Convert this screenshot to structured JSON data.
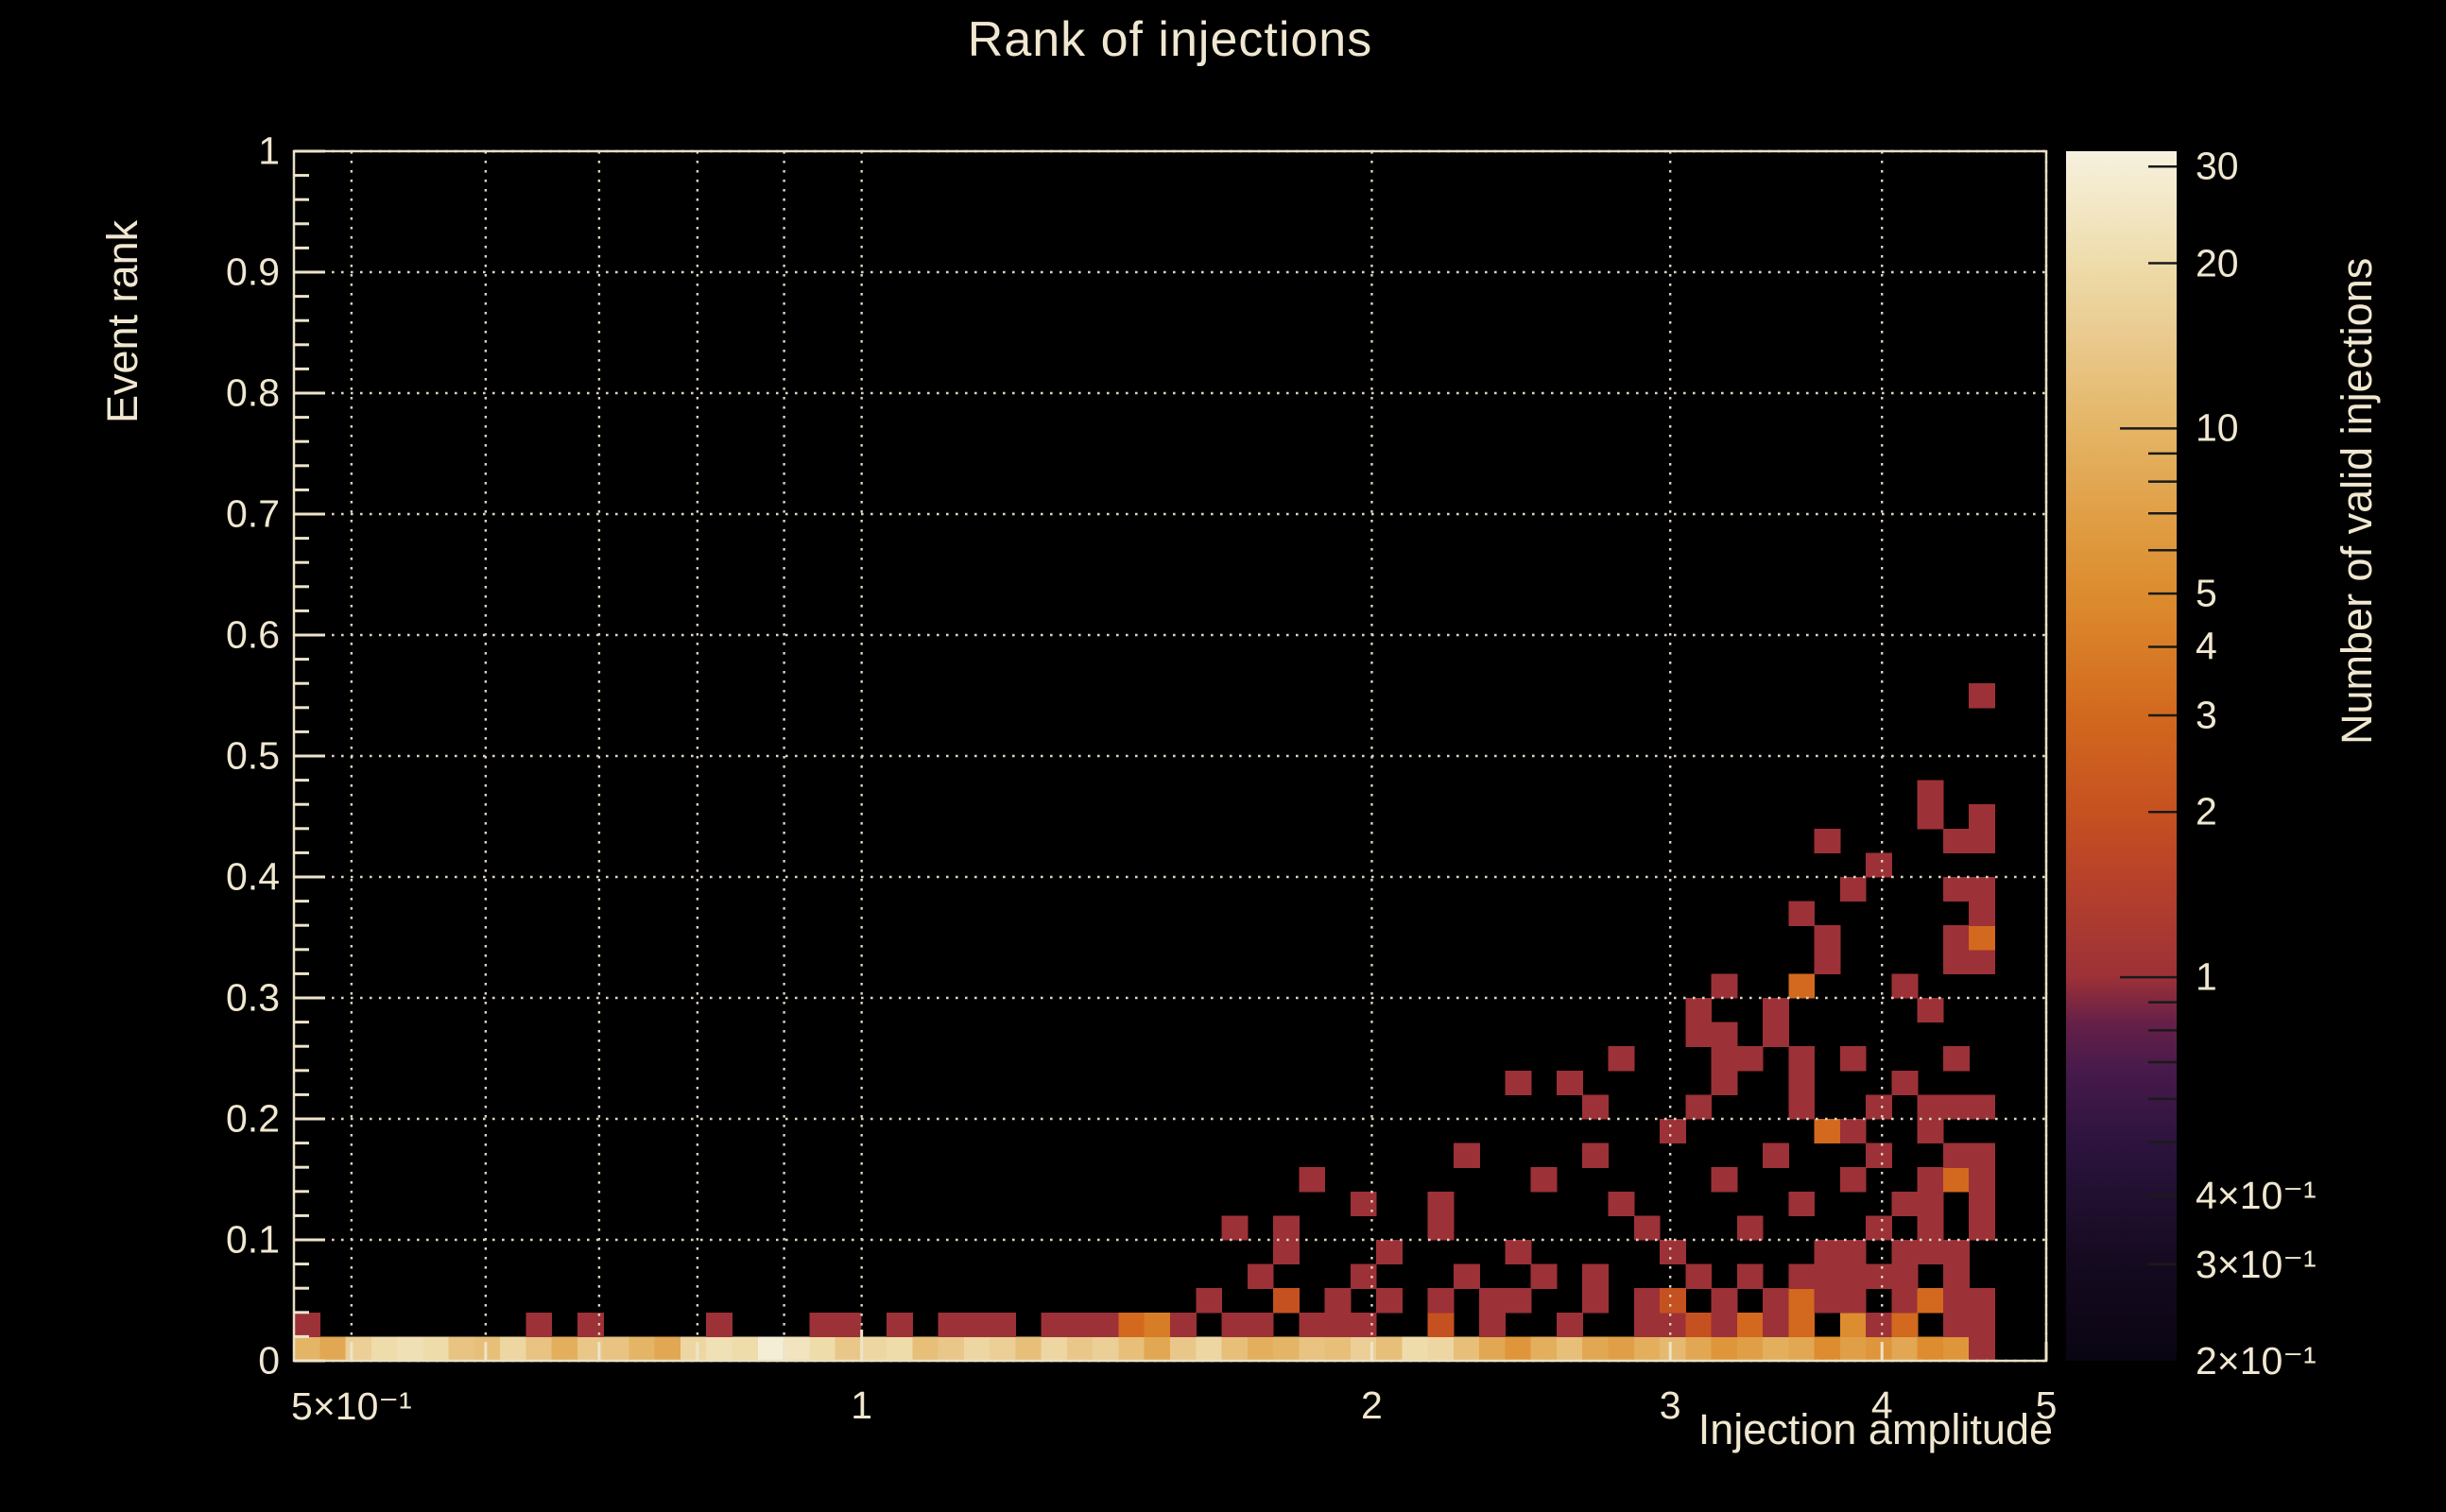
{
  "chart": {
    "title": "Rank of injections",
    "x_title": "Injection amplitude",
    "y_title": "Event rank",
    "z_title": "Number of valid injections",
    "colors": {
      "background": "#000000",
      "text": "#f0e7d0",
      "frame": "#e9dfc6",
      "grid": "#ddd4be",
      "tick": "#eee4ca"
    },
    "x_axis": {
      "scale": "log",
      "min": 0.4624,
      "max": 5,
      "tick_labels": [
        {
          "v": 0.5,
          "label": "5×10⁻¹"
        },
        {
          "v": 1,
          "label": "1"
        },
        {
          "v": 2,
          "label": "2"
        },
        {
          "v": 3,
          "label": "3"
        },
        {
          "v": 4,
          "label": "4"
        },
        {
          "v": 5,
          "label": "5"
        }
      ],
      "grid_values": [
        0.5,
        0.6,
        0.7,
        0.8,
        0.9,
        1,
        2,
        3,
        4,
        5
      ],
      "major_tick_values": [
        1
      ],
      "minor_tick_values": [
        0.5,
        0.6,
        0.7,
        0.8,
        0.9,
        2,
        3,
        4,
        5
      ]
    },
    "y_axis": {
      "scale": "linear",
      "min": 0,
      "max": 1,
      "major_step": 0.1,
      "minor_step": 0.02,
      "grid_values": [
        0,
        0.1,
        0.2,
        0.3,
        0.4,
        0.5,
        0.6,
        0.7,
        0.8,
        0.9,
        1
      ],
      "tick_labels": [
        {
          "v": 0,
          "label": "0"
        },
        {
          "v": 0.1,
          "label": "0.1"
        },
        {
          "v": 0.2,
          "label": "0.2"
        },
        {
          "v": 0.3,
          "label": "0.3"
        },
        {
          "v": 0.4,
          "label": "0.4"
        },
        {
          "v": 0.5,
          "label": "0.5"
        },
        {
          "v": 0.6,
          "label": "0.6"
        },
        {
          "v": 0.7,
          "label": "0.7"
        },
        {
          "v": 0.8,
          "label": "0.8"
        },
        {
          "v": 0.9,
          "label": "0.9"
        },
        {
          "v": 1,
          "label": "1"
        }
      ]
    },
    "z_axis": {
      "scale": "log",
      "min": 0.2,
      "max": 32,
      "tick_labels": [
        {
          "v": 30,
          "label": "30"
        },
        {
          "v": 20,
          "label": "20"
        },
        {
          "v": 10,
          "label": "10"
        },
        {
          "v": 5,
          "label": "5"
        },
        {
          "v": 4,
          "label": "4"
        },
        {
          "v": 3,
          "label": "3"
        },
        {
          "v": 2,
          "label": "2"
        },
        {
          "v": 1,
          "label": "1"
        },
        {
          "v": 0.4,
          "label": "4×10⁻¹"
        },
        {
          "v": 0.3,
          "label": "3×10⁻¹"
        },
        {
          "v": 0.2,
          "label": "2×10⁻¹"
        }
      ],
      "major_tick_values": [
        1,
        10
      ],
      "minor_tick_values": [
        0.3,
        0.4,
        0.5,
        0.6,
        0.7,
        0.8,
        0.9,
        2,
        3,
        4,
        5,
        6,
        7,
        8,
        9,
        20,
        30
      ]
    },
    "palette": [
      [
        0.0,
        "#0a0512"
      ],
      [
        0.08,
        "#150a20"
      ],
      [
        0.14,
        "#221031"
      ],
      [
        0.18,
        "#2d133e"
      ],
      [
        0.24,
        "#471a4b"
      ],
      [
        0.28,
        "#662048"
      ],
      [
        0.317,
        "#9c3137"
      ],
      [
        0.4,
        "#b8422a"
      ],
      [
        0.454,
        "#c65120"
      ],
      [
        0.534,
        "#d2691e"
      ],
      [
        0.635,
        "#dd8c2f"
      ],
      [
        0.7,
        "#e09f46"
      ],
      [
        0.771,
        "#e4b566"
      ],
      [
        0.85,
        "#eacb90"
      ],
      [
        0.908,
        "#eedcab"
      ],
      [
        0.96,
        "#f3e8c8"
      ],
      [
        1.0,
        "#f6f1de"
      ]
    ]
  },
  "chart_data": {
    "type": "heatmap",
    "x_range": [
      0.4624,
      5
    ],
    "y_range": [
      0,
      1
    ],
    "x_bins": 68,
    "y_bins": 50,
    "x_bin_scale": "log",
    "y_bin_size": 0.02,
    "cells": [
      [
        0,
        0,
        10
      ],
      [
        1,
        0,
        8
      ],
      [
        2,
        0,
        16
      ],
      [
        3,
        0,
        20
      ],
      [
        4,
        0,
        22
      ],
      [
        5,
        0,
        20
      ],
      [
        6,
        0,
        13
      ],
      [
        7,
        0,
        12
      ],
      [
        8,
        0,
        18
      ],
      [
        9,
        0,
        13
      ],
      [
        10,
        0,
        9
      ],
      [
        11,
        0,
        14
      ],
      [
        12,
        0,
        13
      ],
      [
        13,
        0,
        10
      ],
      [
        14,
        0,
        8
      ],
      [
        15,
        0,
        18
      ],
      [
        16,
        0,
        22
      ],
      [
        17,
        0,
        20
      ],
      [
        18,
        0,
        30
      ],
      [
        19,
        0,
        24
      ],
      [
        20,
        0,
        20
      ],
      [
        21,
        0,
        14
      ],
      [
        22,
        0,
        18
      ],
      [
        23,
        0,
        20
      ],
      [
        24,
        0,
        12
      ],
      [
        25,
        0,
        14
      ],
      [
        26,
        0,
        18
      ],
      [
        27,
        0,
        16
      ],
      [
        28,
        0,
        12
      ],
      [
        29,
        0,
        18
      ],
      [
        30,
        0,
        14
      ],
      [
        31,
        0,
        16
      ],
      [
        32,
        0,
        12
      ],
      [
        33,
        0,
        8
      ],
      [
        34,
        0,
        14
      ],
      [
        35,
        0,
        18
      ],
      [
        36,
        0,
        12
      ],
      [
        37,
        0,
        9
      ],
      [
        38,
        0,
        10
      ],
      [
        39,
        0,
        13
      ],
      [
        40,
        0,
        12
      ],
      [
        41,
        0,
        16
      ],
      [
        42,
        0,
        12
      ],
      [
        43,
        0,
        20
      ],
      [
        44,
        0,
        18
      ],
      [
        45,
        0,
        12
      ],
      [
        46,
        0,
        8
      ],
      [
        47,
        0,
        6
      ],
      [
        48,
        0,
        9
      ],
      [
        49,
        0,
        12
      ],
      [
        50,
        0,
        8
      ],
      [
        51,
        0,
        7
      ],
      [
        52,
        0,
        9
      ],
      [
        53,
        0,
        11
      ],
      [
        54,
        0,
        8
      ],
      [
        55,
        0,
        6
      ],
      [
        56,
        0,
        7
      ],
      [
        57,
        0,
        9
      ],
      [
        58,
        0,
        8
      ],
      [
        59,
        0,
        5
      ],
      [
        60,
        0,
        7
      ],
      [
        61,
        0,
        6
      ],
      [
        62,
        0,
        8
      ],
      [
        63,
        0,
        5
      ],
      [
        64,
        0,
        6
      ],
      [
        65,
        0,
        1
      ],
      [
        0,
        1,
        1
      ],
      [
        9,
        1,
        1
      ],
      [
        11,
        1,
        1
      ],
      [
        16,
        1,
        1
      ],
      [
        20,
        1,
        1
      ],
      [
        21,
        1,
        1
      ],
      [
        23,
        1,
        1
      ],
      [
        25,
        1,
        1
      ],
      [
        26,
        1,
        1
      ],
      [
        27,
        1,
        1
      ],
      [
        29,
        1,
        1
      ],
      [
        30,
        1,
        1
      ],
      [
        31,
        1,
        1
      ],
      [
        32,
        1,
        3
      ],
      [
        33,
        1,
        4
      ],
      [
        34,
        1,
        1
      ],
      [
        36,
        1,
        1
      ],
      [
        37,
        1,
        1
      ],
      [
        39,
        1,
        1
      ],
      [
        40,
        1,
        1
      ],
      [
        41,
        1,
        1
      ],
      [
        44,
        1,
        2
      ],
      [
        46,
        1,
        1
      ],
      [
        49,
        1,
        1
      ],
      [
        52,
        1,
        1
      ],
      [
        53,
        1,
        1
      ],
      [
        54,
        1,
        2
      ],
      [
        55,
        1,
        1
      ],
      [
        56,
        1,
        3
      ],
      [
        57,
        1,
        1
      ],
      [
        58,
        1,
        3
      ],
      [
        60,
        1,
        5
      ],
      [
        61,
        1,
        1
      ],
      [
        62,
        1,
        3
      ],
      [
        64,
        1,
        1
      ],
      [
        65,
        1,
        1
      ],
      [
        35,
        2,
        1
      ],
      [
        38,
        2,
        2
      ],
      [
        40,
        2,
        1
      ],
      [
        42,
        2,
        1
      ],
      [
        44,
        2,
        1
      ],
      [
        46,
        2,
        1
      ],
      [
        47,
        2,
        1
      ],
      [
        50,
        2,
        1
      ],
      [
        52,
        2,
        1
      ],
      [
        53,
        2,
        2
      ],
      [
        55,
        2,
        1
      ],
      [
        57,
        2,
        1
      ],
      [
        58,
        2,
        3
      ],
      [
        59,
        2,
        1
      ],
      [
        60,
        2,
        1
      ],
      [
        62,
        2,
        1
      ],
      [
        63,
        2,
        3
      ],
      [
        64,
        2,
        1
      ],
      [
        65,
        2,
        1
      ],
      [
        37,
        3,
        1
      ],
      [
        41,
        3,
        1
      ],
      [
        45,
        3,
        1
      ],
      [
        48,
        3,
        1
      ],
      [
        50,
        3,
        1
      ],
      [
        54,
        3,
        1
      ],
      [
        56,
        3,
        1
      ],
      [
        58,
        3,
        1
      ],
      [
        59,
        3,
        1
      ],
      [
        60,
        3,
        1
      ],
      [
        61,
        3,
        1
      ],
      [
        62,
        3,
        1
      ],
      [
        64,
        3,
        1
      ],
      [
        38,
        4,
        1
      ],
      [
        42,
        4,
        1
      ],
      [
        47,
        4,
        1
      ],
      [
        53,
        4,
        1
      ],
      [
        59,
        4,
        1
      ],
      [
        60,
        4,
        1
      ],
      [
        62,
        4,
        1
      ],
      [
        63,
        4,
        1
      ],
      [
        64,
        4,
        1
      ],
      [
        36,
        5,
        1
      ],
      [
        38,
        5,
        1
      ],
      [
        44,
        5,
        1
      ],
      [
        52,
        5,
        1
      ],
      [
        56,
        5,
        1
      ],
      [
        61,
        5,
        1
      ],
      [
        63,
        5,
        1
      ],
      [
        65,
        5,
        1
      ],
      [
        41,
        6,
        1
      ],
      [
        44,
        6,
        1
      ],
      [
        51,
        6,
        1
      ],
      [
        58,
        6,
        1
      ],
      [
        62,
        6,
        1
      ],
      [
        63,
        6,
        1
      ],
      [
        65,
        6,
        1
      ],
      [
        39,
        7,
        1
      ],
      [
        48,
        7,
        1
      ],
      [
        55,
        7,
        1
      ],
      [
        60,
        7,
        1
      ],
      [
        63,
        7,
        1
      ],
      [
        64,
        7,
        3
      ],
      [
        65,
        7,
        1
      ],
      [
        45,
        8,
        1
      ],
      [
        50,
        8,
        1
      ],
      [
        57,
        8,
        1
      ],
      [
        61,
        8,
        1
      ],
      [
        64,
        8,
        1
      ],
      [
        65,
        8,
        1
      ],
      [
        53,
        9,
        1
      ],
      [
        59,
        9,
        3
      ],
      [
        60,
        9,
        1
      ],
      [
        63,
        9,
        1
      ],
      [
        50,
        10,
        1
      ],
      [
        54,
        10,
        1
      ],
      [
        58,
        10,
        1
      ],
      [
        61,
        10,
        1
      ],
      [
        63,
        10,
        1
      ],
      [
        64,
        10,
        1
      ],
      [
        65,
        10,
        1
      ],
      [
        47,
        11,
        1
      ],
      [
        49,
        11,
        1
      ],
      [
        55,
        11,
        1
      ],
      [
        58,
        11,
        1
      ],
      [
        62,
        11,
        1
      ],
      [
        51,
        12,
        1
      ],
      [
        55,
        12,
        1
      ],
      [
        56,
        12,
        1
      ],
      [
        58,
        12,
        1
      ],
      [
        60,
        12,
        1
      ],
      [
        64,
        12,
        1
      ],
      [
        54,
        13,
        1
      ],
      [
        55,
        13,
        1
      ],
      [
        57,
        13,
        1
      ],
      [
        54,
        14,
        1
      ],
      [
        57,
        14,
        1
      ],
      [
        63,
        14,
        1
      ],
      [
        55,
        15,
        1
      ],
      [
        58,
        15,
        3
      ],
      [
        62,
        15,
        1
      ],
      [
        59,
        16,
        1
      ],
      [
        64,
        16,
        1
      ],
      [
        65,
        16,
        1
      ],
      [
        59,
        17,
        1
      ],
      [
        64,
        17,
        1
      ],
      [
        65,
        17,
        3
      ],
      [
        58,
        18,
        1
      ],
      [
        65,
        18,
        1
      ],
      [
        60,
        19,
        1
      ],
      [
        64,
        19,
        1
      ],
      [
        65,
        19,
        1
      ],
      [
        61,
        20,
        1
      ],
      [
        59,
        21,
        1
      ],
      [
        64,
        21,
        1
      ],
      [
        65,
        21,
        1
      ],
      [
        63,
        22,
        1
      ],
      [
        65,
        22,
        1
      ],
      [
        63,
        23,
        1
      ],
      [
        65,
        27,
        1
      ]
    ]
  }
}
